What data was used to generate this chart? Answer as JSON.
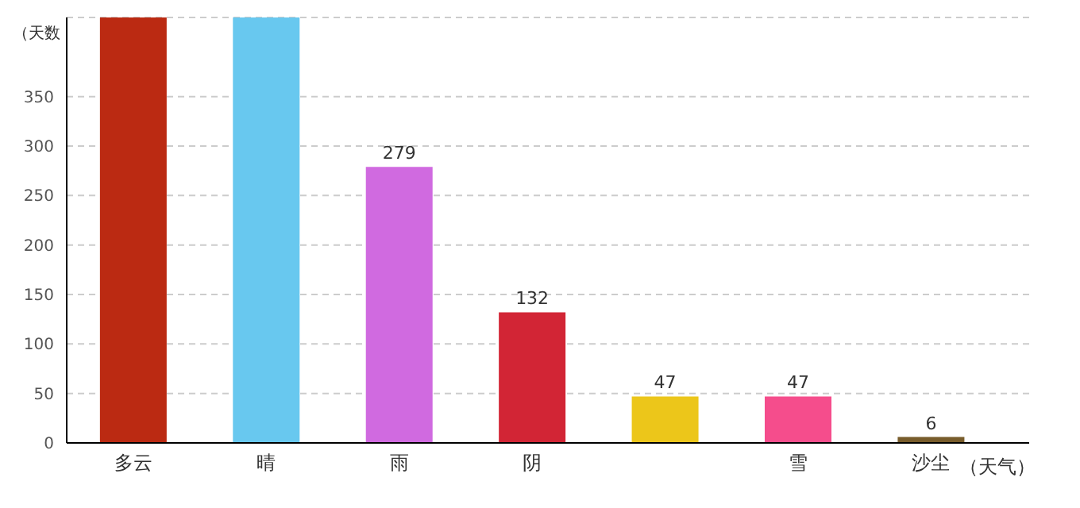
{
  "chart_data": {
    "type": "bar",
    "ylabel": "（天数",
    "xlabel": "（天气）",
    "categories": [
      "多云",
      "晴",
      "雨",
      "阴",
      null,
      "雪",
      "沙尘"
    ],
    "values": [
      430,
      430,
      279,
      132,
      47,
      47,
      6
    ],
    "value_labels": [
      null,
      null,
      "279",
      "132",
      "47",
      "47",
      "6"
    ],
    "colors": [
      "#bb2a12",
      "#68c8ef",
      "#d06ae0",
      "#d22535",
      "#ecc61a",
      "#f54d8c",
      "#785c2b"
    ],
    "ylim": [
      0,
      430
    ],
    "yticks": [
      0,
      50,
      100,
      150,
      200,
      250,
      300,
      350
    ],
    "grid": "y"
  }
}
